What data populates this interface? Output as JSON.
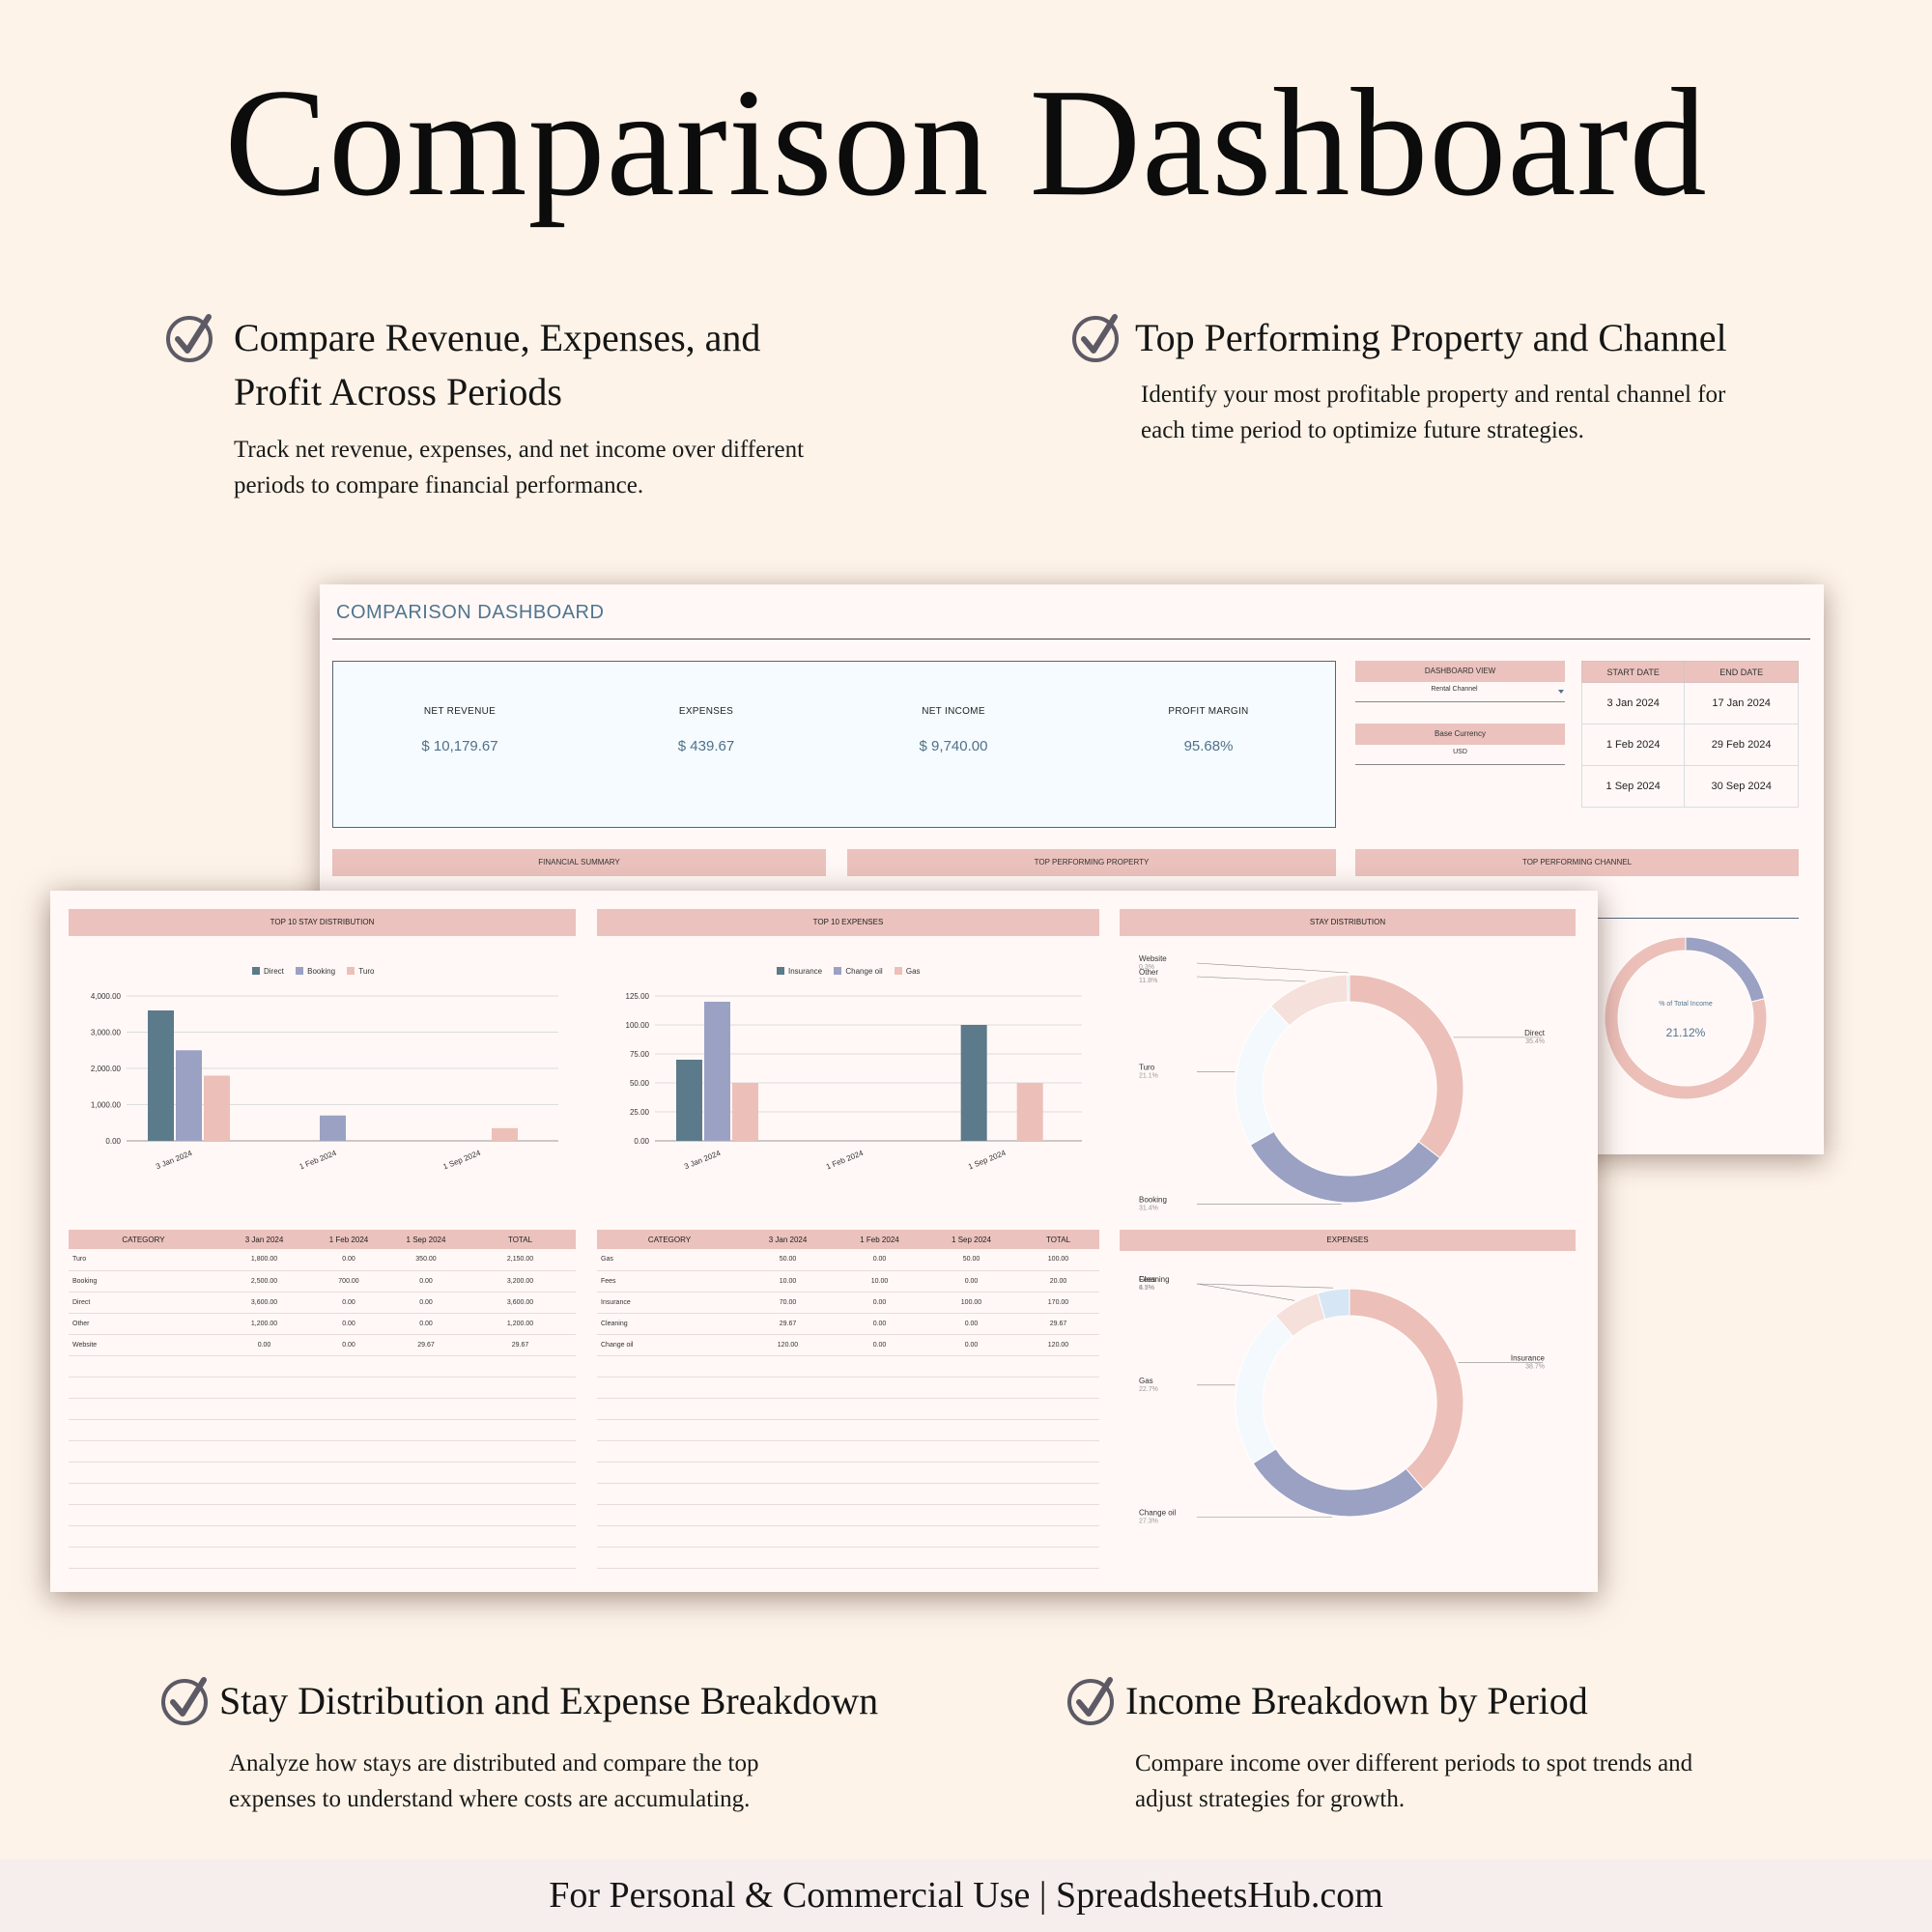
{
  "page": {
    "title": "Comparison Dashboard",
    "footer": "For Personal & Commercial Use  |  SpreadsheetsHub.com"
  },
  "features": [
    {
      "title": "Compare Revenue, Expenses, and",
      "title2": "Profit Across Periods",
      "desc": "Track net revenue, expenses, and net income over different",
      "desc2": "periods to compare financial performance."
    },
    {
      "title": "Top Performing Property and Channel",
      "desc": "Identify your most profitable property and rental channel for",
      "desc2": "each time period to optimize future strategies."
    },
    {
      "title": "Stay Distribution and Expense Breakdown",
      "desc": "Analyze how stays are distributed and compare the top",
      "desc2": "expenses to understand where costs are accumulating."
    },
    {
      "title": "Income Breakdown by Period",
      "desc": "Compare income over different periods to spot trends and",
      "desc2": "adjust strategies for growth."
    }
  ],
  "dashboard": {
    "title": "COMPARISON DASHBOARD",
    "kpis": [
      {
        "label": "NET REVENUE",
        "value": "$ 10,179.67"
      },
      {
        "label": "EXPENSES",
        "value": "$ 439.67"
      },
      {
        "label": "NET INCOME",
        "value": "$ 9,740.00"
      },
      {
        "label": "PROFIT MARGIN",
        "value": "95.68%"
      }
    ],
    "dashboard_view_label": "DASHBOARD VIEW",
    "dashboard_view_value": "Rental Channel",
    "base_currency_label": "Base Currency",
    "base_currency_value": "USD",
    "date_headers": [
      "START DATE",
      "END DATE"
    ],
    "date_rows": [
      [
        "3 Jan 2024",
        "17 Jan 2024"
      ],
      [
        "1 Feb 2024",
        "29 Feb 2024"
      ],
      [
        "1 Sep 2024",
        "30 Sep 2024"
      ]
    ],
    "sections_back": [
      "FINANCIAL SUMMARY",
      "TOP PERFORMING PROPERTY",
      "TOP PERFORMING CHANNEL"
    ],
    "channel_donut_label": "% of Total Income",
    "channel_donut_value": "21.12%",
    "sections_front": [
      "TOP 10 STAY DISTRIBUTION",
      "TOP 10 EXPENSES",
      "STAY DISTRIBUTION",
      "EXPENSES"
    ],
    "table_headers": [
      "CATEGORY",
      "3 Jan 2024",
      "1 Feb 2024",
      "1 Sep 2024",
      "TOTAL"
    ],
    "stay_rows": [
      [
        "Turo",
        "1,800.00",
        "0.00",
        "350.00",
        "2,150.00"
      ],
      [
        "Booking",
        "2,500.00",
        "700.00",
        "0.00",
        "3,200.00"
      ],
      [
        "Direct",
        "3,600.00",
        "0.00",
        "0.00",
        "3,600.00"
      ],
      [
        "Other",
        "1,200.00",
        "0.00",
        "0.00",
        "1,200.00"
      ],
      [
        "Website",
        "0.00",
        "0.00",
        "29.67",
        "29.67"
      ]
    ],
    "expense_rows": [
      [
        "Gas",
        "50.00",
        "0.00",
        "50.00",
        "100.00"
      ],
      [
        "Fees",
        "10.00",
        "10.00",
        "0.00",
        "20.00"
      ],
      [
        "Insurance",
        "70.00",
        "0.00",
        "100.00",
        "170.00"
      ],
      [
        "Cleaning",
        "29.67",
        "0.00",
        "0.00",
        "29.67"
      ],
      [
        "Change oil",
        "120.00",
        "0.00",
        "0.00",
        "120.00"
      ]
    ]
  },
  "colors": {
    "accent_pink": "#ebc2bd",
    "slate": "#5b7a8a",
    "lavender": "#9ba1c3",
    "peach": "#ecc0b8",
    "ice": "#f3f9fd",
    "title_blue": "#4f7590"
  },
  "icons": {
    "feature_check": "check-circle-icon"
  },
  "chart_data": [
    {
      "type": "bar",
      "title": "TOP 10 STAY DISTRIBUTION",
      "categories": [
        "3 Jan 2024",
        "1 Feb 2024",
        "1 Sep 2024"
      ],
      "series": [
        {
          "name": "Direct",
          "values": [
            3600,
            0,
            0
          ],
          "color": "#5b7a8a"
        },
        {
          "name": "Booking",
          "values": [
            2500,
            700,
            0
          ],
          "color": "#9ba1c3"
        },
        {
          "name": "Turo",
          "values": [
            1800,
            0,
            350
          ],
          "color": "#ecc0b8"
        }
      ],
      "ylim": [
        0,
        4000
      ],
      "yticks": [
        "4,000.00",
        "3,000.00",
        "2,000.00",
        "1,000.00",
        "0.00"
      ],
      "legend": "top-center",
      "grid": true
    },
    {
      "type": "bar",
      "title": "TOP 10 EXPENSES",
      "categories": [
        "3 Jan 2024",
        "1 Feb 2024",
        "1 Sep 2024"
      ],
      "series": [
        {
          "name": "Insurance",
          "values": [
            70,
            0,
            100
          ],
          "color": "#5b7a8a"
        },
        {
          "name": "Change oil",
          "values": [
            120,
            0,
            0
          ],
          "color": "#9ba1c3"
        },
        {
          "name": "Gas",
          "values": [
            50,
            0,
            50
          ],
          "color": "#ecc0b8"
        }
      ],
      "ylim": [
        0,
        125
      ],
      "yticks": [
        "125.00",
        "100.00",
        "75.00",
        "50.00",
        "25.00",
        "0.00"
      ],
      "legend": "top-center",
      "grid": true
    },
    {
      "type": "pie",
      "title": "STAY DISTRIBUTION",
      "slices": [
        {
          "label": "Direct",
          "pct": "35.4%",
          "value": 35.4,
          "color": "#ecc0b8"
        },
        {
          "label": "Booking",
          "pct": "31.4%",
          "value": 31.4,
          "color": "#9ba1c3"
        },
        {
          "label": "Turo",
          "pct": "21.1%",
          "value": 21.1,
          "color": "#f3f9fd"
        },
        {
          "label": "Other",
          "pct": "11.8%",
          "value": 11.8,
          "color": "#f6e0dc"
        },
        {
          "label": "Website",
          "pct": "0.3%",
          "value": 0.3,
          "color": "#d7e6f4"
        }
      ]
    },
    {
      "type": "pie",
      "title": "EXPENSES",
      "slices": [
        {
          "label": "Insurance",
          "pct": "38.7%",
          "value": 38.7,
          "color": "#ecc0b8"
        },
        {
          "label": "Change oil",
          "pct": "27.3%",
          "value": 27.3,
          "color": "#9ba1c3"
        },
        {
          "label": "Gas",
          "pct": "22.7%",
          "value": 22.7,
          "color": "#f3f9fd"
        },
        {
          "label": "Cleaning",
          "pct": "6.7%",
          "value": 6.7,
          "color": "#f6e0dc"
        },
        {
          "label": "Fees",
          "pct": "4.5%",
          "value": 4.5,
          "color": "#d7e6f4"
        }
      ]
    },
    {
      "type": "pie",
      "title": "TOP PERFORMING CHANNEL",
      "slices": [
        {
          "label": "% of Total Income",
          "pct": "21.12%",
          "value": 21.12,
          "color": "#9ba1c3"
        },
        {
          "label": "",
          "pct": "",
          "value": 78.88,
          "color": "#ecc0b8"
        }
      ]
    }
  ]
}
